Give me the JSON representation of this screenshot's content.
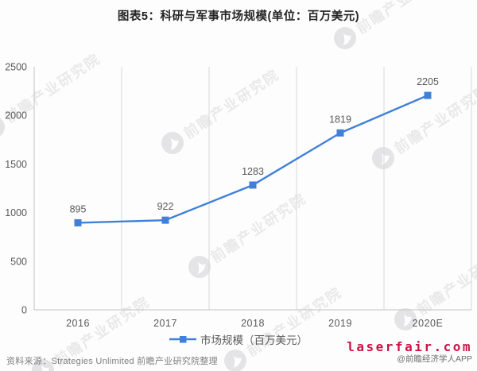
{
  "title": "图表5：科研与军事市场规模(单位：百万美元)",
  "chart_data": {
    "type": "line",
    "categories": [
      "2016",
      "2017",
      "2018",
      "2019",
      "2020E"
    ],
    "series": [
      {
        "name": "市场规模（百万美元）",
        "values": [
          895,
          922,
          1283,
          1819,
          2205
        ]
      }
    ],
    "title": "图表5：科研与军事市场规模(单位：百万美元)",
    "xlabel": "",
    "ylabel": "",
    "ylim": [
      0,
      2500
    ],
    "yticks": [
      0,
      500,
      1000,
      1500,
      2000,
      2500
    ],
    "grid": "vertical-only",
    "legend_position": "bottom",
    "marker": "square",
    "colors": {
      "line": "#4080d8",
      "grid": "#d9d9d9",
      "axis": "#c3c3c3",
      "tick_text": "#595959",
      "data_label": "#595959"
    }
  },
  "legend": {
    "label": "市场规模（百万美元）"
  },
  "watermark": {
    "text": "前瞻产业研究院"
  },
  "footer": {
    "source": "资料来源：Strategies Unlimited 前瞻产业研究院整理",
    "site": "laserfair.com",
    "app_credit": "@前瞻经济学人APP"
  }
}
